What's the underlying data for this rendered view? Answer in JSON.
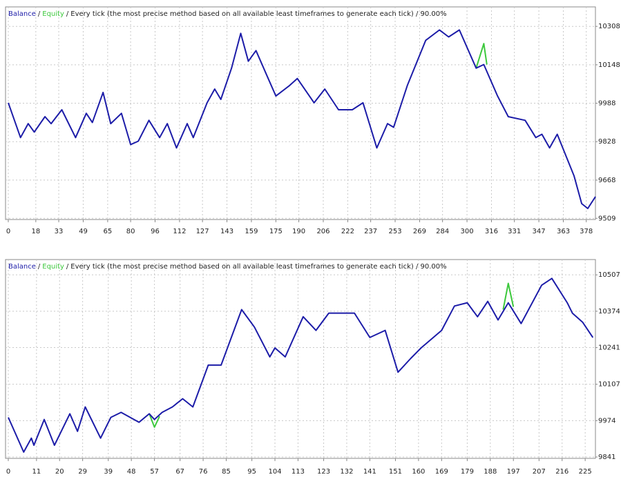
{
  "chart_data": [
    {
      "type": "line",
      "legend_separator": "/",
      "description": "Every tick (the most precise method based on all available least timeframes to generate each tick) / 90.00%",
      "series": [
        {
          "name": "Balance",
          "color": "#1c1ca8",
          "x": [
            0,
            8,
            13,
            17,
            24,
            28,
            35,
            44,
            51,
            55,
            62,
            67,
            74,
            80,
            85,
            92,
            99,
            104,
            110,
            117,
            121,
            130,
            135,
            139,
            146,
            152,
            157,
            162,
            169,
            175,
            184,
            189,
            200,
            207,
            216,
            225,
            232,
            241,
            248,
            252,
            261,
            273,
            282,
            288,
            295,
            306,
            311,
            320,
            327,
            338,
            345,
            349,
            354,
            359,
            370,
            375,
            379,
            384
          ],
          "values": [
            9990,
            9845,
            9903,
            9868,
            9932,
            9903,
            9961,
            9845,
            9946,
            9908,
            10033,
            9903,
            9946,
            9816,
            9830,
            9917,
            9845,
            9903,
            9802,
            9903,
            9845,
            9990,
            10047,
            10004,
            10134,
            10279,
            10163,
            10207,
            10105,
            10018,
            10062,
            10091,
            9990,
            10047,
            9961,
            9961,
            9990,
            9802,
            9903,
            9888,
            10062,
            10250,
            10293,
            10264,
            10293,
            10134,
            10149,
            10018,
            9932,
            9917,
            9845,
            9859,
            9802,
            9859,
            9686,
            9570,
            9550,
            9599
          ]
        },
        {
          "name": "Equity",
          "color": "#3cc83c",
          "x": [
            306,
            311,
            313
          ],
          "values": [
            10134,
            10236,
            10149
          ]
        }
      ],
      "xlim": [
        0,
        384
      ],
      "xticks": [
        0,
        18,
        33,
        49,
        65,
        80,
        96,
        112,
        127,
        143,
        159,
        175,
        190,
        206,
        222,
        237,
        253,
        269,
        284,
        300,
        316,
        331,
        347,
        363,
        378
      ],
      "ylim": [
        9504,
        10389
      ],
      "yticks": [
        9509,
        9668,
        9828,
        9988,
        10148,
        10308
      ],
      "grid": true
    },
    {
      "type": "line",
      "legend_separator": "/",
      "description": "Every tick (the most precise method based on all available least timeframes to generate each tick) / 90.00%",
      "series": [
        {
          "name": "Balance",
          "color": "#1c1ca8",
          "x": [
            0,
            6,
            9,
            10,
            14,
            18,
            24,
            27,
            30,
            36,
            40,
            44,
            51,
            55,
            57,
            60,
            64,
            68,
            72,
            78,
            83,
            91,
            96,
            102,
            104,
            108,
            115,
            120,
            125,
            135,
            141,
            147,
            152,
            157,
            161,
            169,
            174,
            179,
            183,
            187,
            191,
            195,
            200,
            208,
            212,
            218,
            220,
            224,
            228
          ],
          "values": [
            9986,
            9859,
            9910,
            9884,
            9978,
            9884,
            9999,
            9935,
            10024,
            9910,
            9986,
            10004,
            9968,
            9999,
            9978,
            10004,
            10024,
            10054,
            10024,
            10177,
            10177,
            10380,
            10316,
            10207,
            10240,
            10207,
            10354,
            10304,
            10367,
            10367,
            10278,
            10304,
            10151,
            10202,
            10240,
            10304,
            10393,
            10405,
            10354,
            10410,
            10342,
            10405,
            10329,
            10469,
            10494,
            10405,
            10367,
            10334,
            10278
          ]
        },
        {
          "name": "Equity",
          "color": "#3cc83c",
          "x": [
            55,
            57,
            59,
            null,
            193,
            195,
            197
          ],
          "values": [
            9999,
            9950,
            9990,
            null,
            10380,
            10476,
            10390
          ]
        }
      ],
      "xlim": [
        0,
        229
      ],
      "xticks": [
        0,
        11,
        20,
        29,
        39,
        48,
        57,
        67,
        76,
        85,
        95,
        104,
        113,
        123,
        132,
        141,
        151,
        160,
        169,
        179,
        188,
        197,
        207,
        216,
        225
      ],
      "ylim": [
        9836,
        10563
      ],
      "yticks": [
        9841,
        9974,
        10107,
        10241,
        10374,
        10507
      ],
      "grid": true
    }
  ]
}
